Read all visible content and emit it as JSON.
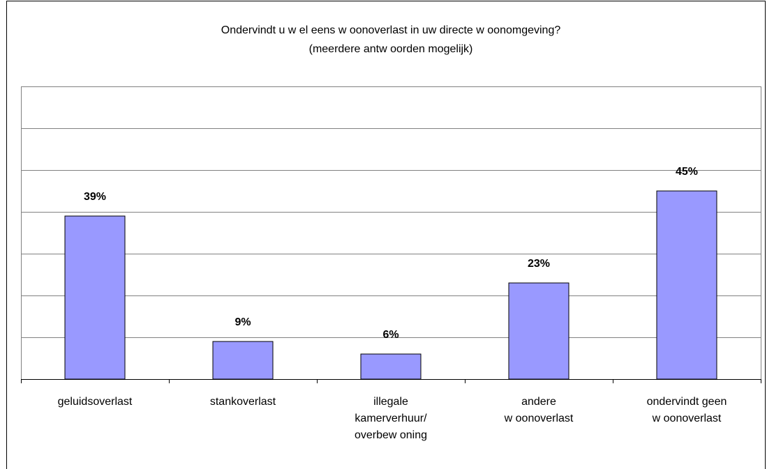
{
  "chart_data": {
    "type": "bar",
    "title": "Ondervindt u w el eens w oonoverlast in uw  directe w oonomgeving?",
    "subtitle": "(meerdere antw oorden mogelijk)",
    "categories": [
      "geluidsoverlast",
      "stankoverlast",
      "illegale\nkamerverhuur/\noverbew oning",
      "andere\nw oonoverlast",
      "ondervindt geen\nw oonoverlast"
    ],
    "values": [
      39,
      9,
      6,
      23,
      45
    ],
    "value_labels": [
      "39%",
      "9%",
      "6%",
      "23%",
      "45%"
    ],
    "color": "#9999ff",
    "ylim": [
      0,
      70
    ],
    "yticks": [
      0,
      10,
      20,
      30,
      40,
      50,
      60,
      70
    ],
    "grid": true
  }
}
